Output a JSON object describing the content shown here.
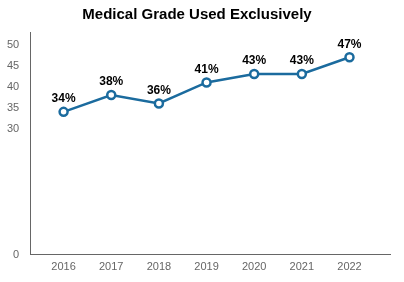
{
  "chart_data": {
    "type": "line",
    "title": "Medical Grade Used Exclusively",
    "x": [
      2016,
      2017,
      2018,
      2019,
      2020,
      2021,
      2022
    ],
    "values": [
      34,
      38,
      36,
      41,
      43,
      43,
      47
    ],
    "value_labels": [
      "34%",
      "38%",
      "36%",
      "41%",
      "43%",
      "43%",
      "47%"
    ],
    "data_labels": true,
    "color": "#1b6b9e",
    "marker": "circle",
    "xlim": [
      2015.3,
      2022.85
    ],
    "xticks": [
      2016,
      2017,
      2018,
      2019,
      2020,
      2021,
      2022
    ],
    "ylim": [
      0,
      53
    ],
    "yticks": [
      0,
      30,
      35,
      40,
      45,
      50
    ],
    "grid": false
  }
}
